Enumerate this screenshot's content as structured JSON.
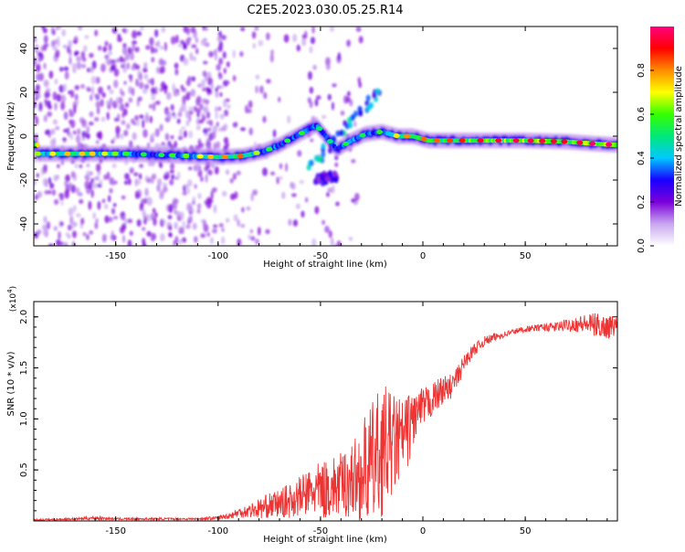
{
  "title": "C2E5.2023.030.05.25.R14",
  "chart_data": [
    {
      "type": "heatmap",
      "xlabel": "Height of straight line (km)",
      "ylabel": "Frequency (Hz)",
      "xlim": [
        -190,
        95
      ],
      "ylim": [
        -50,
        50
      ],
      "xticks": [
        -150,
        -100,
        -50,
        0,
        50
      ],
      "yticks": [
        -40,
        -20,
        0,
        20,
        40
      ],
      "colorbar": {
        "label": "Normalized spectral amplitude",
        "range": [
          0.0,
          1.0
        ],
        "ticks": [
          0.0,
          0.2,
          0.4,
          0.6,
          0.8
        ],
        "tick_labels": [
          "0.0",
          "0.2",
          "0.4",
          "0.6",
          "0.8"
        ],
        "colors": [
          "#ffffff",
          "#c9a7f0",
          "#7b00d8",
          "#1a00ff",
          "#00c8ff",
          "#00e87a",
          "#35ff00",
          "#ffff00",
          "#ff8c00",
          "#ff0000",
          "#ff0080"
        ]
      },
      "main_band": [
        {
          "x": -188,
          "f": -8,
          "amp": 0.62
        },
        {
          "x": -175,
          "f": -8,
          "amp": 0.72
        },
        {
          "x": -160,
          "f": -8,
          "amp": 0.7
        },
        {
          "x": -145,
          "f": -8,
          "amp": 0.55
        },
        {
          "x": -130,
          "f": -8.5,
          "amp": 0.5
        },
        {
          "x": -115,
          "f": -9,
          "amp": 0.6
        },
        {
          "x": -100,
          "f": -9.5,
          "amp": 0.75
        },
        {
          "x": -88,
          "f": -9,
          "amp": 0.8
        },
        {
          "x": -78,
          "f": -7,
          "amp": 0.55
        },
        {
          "x": -70,
          "f": -4,
          "amp": 0.5
        },
        {
          "x": -62,
          "f": 0,
          "amp": 0.55
        },
        {
          "x": -52,
          "f": 5,
          "amp": 0.5
        },
        {
          "x": -42,
          "f": -6,
          "amp": 0.45
        },
        {
          "x": -35,
          "f": -2,
          "amp": 0.55
        },
        {
          "x": -28,
          "f": 1,
          "amp": 0.5
        },
        {
          "x": -20,
          "f": 2,
          "amp": 0.55
        },
        {
          "x": -12,
          "f": 0,
          "amp": 0.7
        },
        {
          "x": -5,
          "f": 0,
          "amp": 0.8
        },
        {
          "x": 3,
          "f": -2,
          "amp": 0.78
        },
        {
          "x": 15,
          "f": -2,
          "amp": 0.82
        },
        {
          "x": 30,
          "f": -2,
          "amp": 0.9
        },
        {
          "x": 50,
          "f": -2,
          "amp": 0.92
        },
        {
          "x": 70,
          "f": -2.5,
          "amp": 0.88
        },
        {
          "x": 85,
          "f": -3.5,
          "amp": 0.95
        },
        {
          "x": 95,
          "f": -4,
          "amp": 0.95
        }
      ],
      "branches": [
        {
          "x0": -55,
          "f0": -14,
          "x1": -20,
          "f1": 22,
          "amp": 0.45
        },
        {
          "x0": -52,
          "f0": -20,
          "x1": -42,
          "f1": -18,
          "amp": 0.3
        }
      ]
    },
    {
      "type": "line",
      "xlabel": "Height of straight line (km)",
      "ylabel": "SNR (10 * v/v)",
      "y_multiplier": "(x10",
      "y_multiplier_exp": "4",
      "y_multiplier_close": ")",
      "xlim": [
        -190,
        95
      ],
      "ylim": [
        0,
        2.15
      ],
      "xticks": [
        -150,
        -100,
        -50,
        0,
        50
      ],
      "yticks": [
        0.5,
        1.0,
        1.5,
        2.0
      ],
      "ytick_labels": [
        "0.5",
        "1.0",
        "1.5",
        "2.0"
      ],
      "series": [
        {
          "color": "#ee3333",
          "x": [
            -190,
            -170,
            -160,
            -150,
            -130,
            -110,
            -100,
            -95,
            -90,
            -85,
            -80,
            -75,
            -70,
            -65,
            -60,
            -55,
            -50,
            -45,
            -40,
            -35,
            -30,
            -28,
            -25,
            -22,
            -20,
            -18,
            -15,
            -12,
            -10,
            -7,
            -5,
            -3,
            0,
            3,
            5,
            8,
            10,
            12,
            15,
            18,
            20,
            25,
            30,
            35,
            40,
            45,
            50,
            55,
            60,
            65,
            70,
            75,
            80,
            85,
            90,
            95
          ],
          "y": [
            0.01,
            0.02,
            0.03,
            0.02,
            0.02,
            0.02,
            0.03,
            0.05,
            0.08,
            0.1,
            0.12,
            0.15,
            0.17,
            0.2,
            0.24,
            0.28,
            0.3,
            0.32,
            0.35,
            0.4,
            0.45,
            0.5,
            0.55,
            0.62,
            0.7,
            0.72,
            0.75,
            0.78,
            0.8,
            0.9,
            1.0,
            1.05,
            1.1,
            1.15,
            1.2,
            1.25,
            1.3,
            1.28,
            1.35,
            1.45,
            1.55,
            1.68,
            1.76,
            1.8,
            1.83,
            1.86,
            1.88,
            1.89,
            1.9,
            1.9,
            1.92,
            1.93,
            1.93,
            1.92,
            1.9,
            1.92
          ],
          "noise": [
            0.01,
            0.01,
            0.02,
            0.01,
            0.01,
            0.01,
            0.02,
            0.03,
            0.05,
            0.07,
            0.1,
            0.12,
            0.14,
            0.17,
            0.2,
            0.24,
            0.28,
            0.3,
            0.32,
            0.38,
            0.45,
            0.55,
            0.6,
            0.65,
            0.65,
            0.6,
            0.5,
            0.45,
            0.4,
            0.35,
            0.3,
            0.25,
            0.2,
            0.18,
            0.16,
            0.15,
            0.14,
            0.13,
            0.12,
            0.1,
            0.08,
            0.06,
            0.05,
            0.04,
            0.03,
            0.03,
            0.03,
            0.03,
            0.04,
            0.05,
            0.06,
            0.08,
            0.1,
            0.12,
            0.12,
            0.1
          ]
        }
      ]
    }
  ]
}
